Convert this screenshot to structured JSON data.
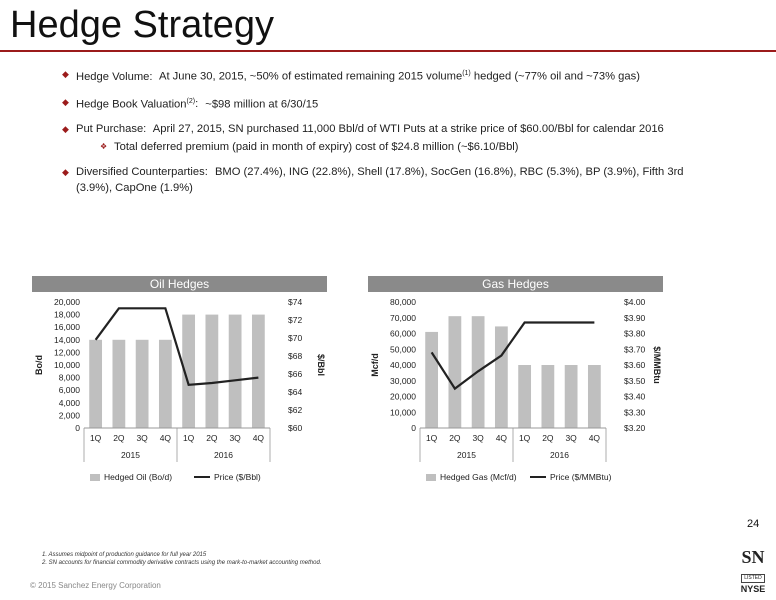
{
  "title": "Hedge Strategy",
  "bullets": [
    {
      "label": "Hedge Volume:",
      "text": "At June 30, 2015, ~50% of estimated remaining 2015 volume",
      "sup": "(1)",
      "text2": " hedged (~77% oil and ~73% gas)"
    },
    {
      "label": "Hedge Book Valuation",
      "sup": "(2)",
      "label2": ":",
      "text": "~$98 million at 6/30/15"
    },
    {
      "label": "Put Purchase:",
      "text": "April 27, 2015, SN purchased 11,000 Bbl/d of WTI Puts at a strike price of $60.00/Bbl for calendar 2016",
      "sub": "Total deferred premium (paid in month of expiry) cost of $24.8 million (~$6.10/Bbl)"
    },
    {
      "label": "Diversified Counterparties:",
      "text": "BMO (27.4%), ING (22.8%), Shell (17.8%), SocGen (16.8%), RBC (5.3%), BP (3.9%), Fifth 3rd (3.9%), CapOne (1.9%)"
    }
  ],
  "chart_data": [
    {
      "type": "bar",
      "title": "Oil Hedges",
      "categories": [
        "1Q",
        "2Q",
        "3Q",
        "4Q",
        "1Q",
        "2Q",
        "3Q",
        "4Q"
      ],
      "groups": [
        "2015",
        "2016"
      ],
      "ylabel": "Bo/d",
      "y2label": "$/Bbl",
      "ylim": [
        0,
        20000
      ],
      "yticks": [
        "0",
        "2,000",
        "4,000",
        "6,000",
        "8,000",
        "10,000",
        "12,000",
        "14,000",
        "16,000",
        "18,000",
        "20,000"
      ],
      "y2lim": [
        60,
        74
      ],
      "y2ticks": [
        "$60",
        "$62",
        "$64",
        "$66",
        "$68",
        "$70",
        "$72",
        "$74"
      ],
      "series": [
        {
          "name": "Hedged Oil (Bo/d)",
          "kind": "bar",
          "color": "#bfbfbf",
          "values": [
            14000,
            14000,
            14000,
            14000,
            18000,
            18000,
            18000,
            18000
          ]
        },
        {
          "name": "Price ($/Bbl)",
          "kind": "line",
          "axis": "right",
          "color": "#222222",
          "values": [
            69.8,
            73.3,
            73.3,
            73.3,
            64.8,
            65.0,
            65.3,
            65.6
          ]
        }
      ]
    },
    {
      "type": "bar",
      "title": "Gas Hedges",
      "categories": [
        "1Q",
        "2Q",
        "3Q",
        "4Q",
        "1Q",
        "2Q",
        "3Q",
        "4Q"
      ],
      "groups": [
        "2015",
        "2016"
      ],
      "ylabel": "Mcf/d",
      "y2label": "$/MMBtu",
      "ylim": [
        0,
        80000
      ],
      "yticks": [
        "0",
        "10,000",
        "20,000",
        "30,000",
        "40,000",
        "50,000",
        "60,000",
        "70,000",
        "80,000"
      ],
      "y2lim": [
        3.2,
        4.0
      ],
      "y2ticks": [
        "$3.20",
        "$3.30",
        "$3.40",
        "$3.50",
        "$3.60",
        "$3.70",
        "$3.80",
        "$3.90",
        "$4.00"
      ],
      "series": [
        {
          "name": "Hedged Gas (Mcf/d)",
          "kind": "bar",
          "color": "#bfbfbf",
          "values": [
            61000,
            71000,
            71000,
            64500,
            40000,
            40000,
            40000,
            40000
          ]
        },
        {
          "name": "Price ($/MMBtu)",
          "kind": "line",
          "axis": "right",
          "color": "#222222",
          "values": [
            3.68,
            3.45,
            3.56,
            3.66,
            3.87,
            3.87,
            3.87,
            3.87
          ]
        }
      ]
    }
  ],
  "page_number": "24",
  "footnotes": [
    "1. Assumes midpoint of production guidance for full year 2015",
    "2. SN accounts for financial commodity derivative contracts using the mark-to-market accounting method."
  ],
  "copyright": "© 2015 Sanchez Energy Corporation",
  "logo": {
    "sn": "SN",
    "listed": "LISTED",
    "nyse": "NYSE"
  },
  "colors": {
    "accent": "#9b1b1b",
    "bar": "#bfbfbf",
    "header": "#8a8a8a"
  }
}
